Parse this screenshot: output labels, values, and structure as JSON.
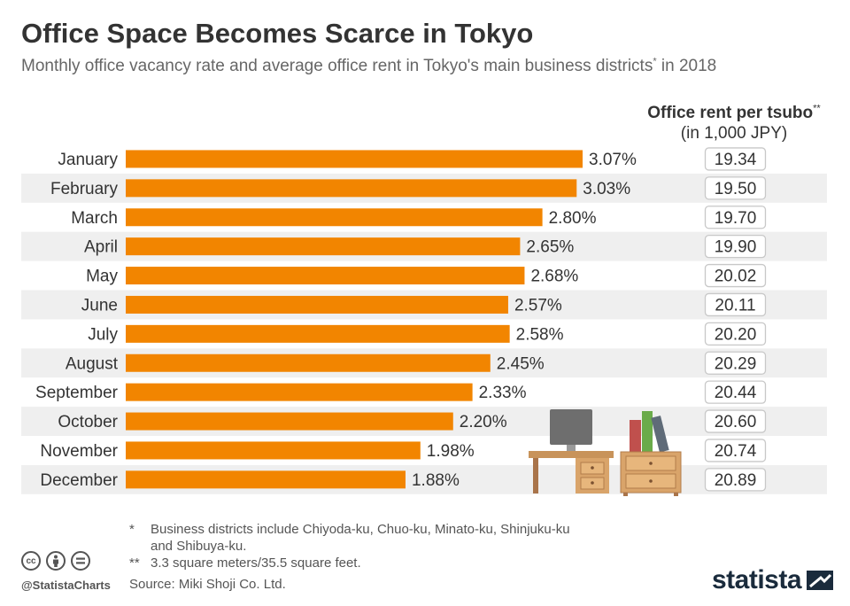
{
  "title": "Office Space Becomes Scarce in Tokyo",
  "subtitle": "Monthly office vacancy rate and average office rent in Tokyo's main business districts",
  "subtitle_mark": "*",
  "subtitle_tail": " in 2018",
  "rent_header": {
    "line1": "Office rent per tsubo",
    "mark": "**",
    "line2": "(in 1,000 JPY)"
  },
  "chart_data": {
    "type": "bar",
    "orientation": "horizontal",
    "title": "Office Space Becomes Scarce in Tokyo",
    "categories": [
      "January",
      "February",
      "March",
      "April",
      "May",
      "June",
      "July",
      "August",
      "September",
      "October",
      "November",
      "December"
    ],
    "series": [
      {
        "name": "Vacancy rate (%)",
        "values": [
          3.07,
          3.03,
          2.8,
          2.65,
          2.68,
          2.57,
          2.58,
          2.45,
          2.33,
          2.2,
          1.98,
          1.88
        ]
      },
      {
        "name": "Office rent per tsubo (in 1,000 JPY)",
        "values": [
          19.34,
          19.5,
          19.7,
          19.9,
          20.02,
          20.11,
          20.2,
          20.29,
          20.44,
          20.6,
          20.74,
          20.89
        ]
      }
    ],
    "value_labels": [
      "3.07%",
      "3.03%",
      "2.80%",
      "2.65%",
      "2.68%",
      "2.57%",
      "2.58%",
      "2.45%",
      "2.33%",
      "2.20%",
      "1.98%",
      "1.88%"
    ],
    "rent_labels": [
      "19.34",
      "19.50",
      "19.70",
      "19.90",
      "20.02",
      "20.11",
      "20.20",
      "20.29",
      "20.44",
      "20.60",
      "20.74",
      "20.89"
    ],
    "xlim": [
      0,
      3.07
    ],
    "bar_color": "#f28500",
    "stripe_color": "#efefef"
  },
  "notes": [
    {
      "mark": "*",
      "text": "Business districts include Chiyoda-ku, Chuo-ku, Minato-ku, Shinjuku-ku and Shibuya-ku."
    },
    {
      "mark": "**",
      "text": "3.3 square meters/35.5 square feet."
    }
  ],
  "source": "Source: Miki Shoji Co. Ltd.",
  "handle": "@StatistaCharts",
  "cc_icons": [
    "cc-icon",
    "by-icon",
    "nd-icon"
  ],
  "logo": "statista"
}
